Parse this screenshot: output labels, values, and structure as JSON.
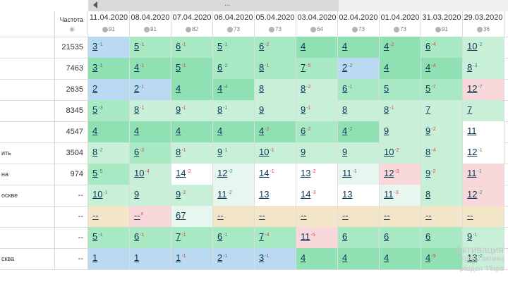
{
  "header": {
    "freq_label": "Частота",
    "scroll_label": "..."
  },
  "dates": [
    {
      "date": "11.04.2020",
      "pct": "91"
    },
    {
      "date": "08.04.2020",
      "pct": "91"
    },
    {
      "date": "07.04.2020",
      "pct": "82"
    },
    {
      "date": "06.04.2020",
      "pct": "73"
    },
    {
      "date": "05.04.2020",
      "pct": "73"
    },
    {
      "date": "03.04.2020",
      "pct": "64"
    },
    {
      "date": "02.04.2020",
      "pct": "73"
    },
    {
      "date": "01.04.2020",
      "pct": "73"
    },
    {
      "date": "31.03.2020",
      "pct": "91"
    },
    {
      "date": "29.03.2020",
      "pct": "36"
    }
  ],
  "rows": [
    {
      "name": "",
      "freq": "21535",
      "cells": [
        [
          "3",
          "-1",
          "b"
        ],
        [
          "5",
          "-1",
          "g2"
        ],
        [
          "6",
          "-1",
          "g2"
        ],
        [
          "5",
          "-1",
          "g2"
        ],
        [
          "6",
          "-2",
          "g2"
        ],
        [
          "4",
          "",
          "g1"
        ],
        [
          "4",
          "",
          "g1"
        ],
        [
          "4",
          "-2",
          "g1"
        ],
        [
          "6",
          "-4",
          "g2"
        ],
        [
          "10",
          "-2",
          "g3"
        ]
      ]
    },
    {
      "name": "",
      "freq": "7463",
      "cells": [
        [
          "3",
          "-1",
          "g1"
        ],
        [
          "4",
          "-1",
          "g1"
        ],
        [
          "5",
          "-1",
          "g1"
        ],
        [
          "6",
          "-2",
          "g2"
        ],
        [
          "8",
          "-1",
          "g2"
        ],
        [
          "7",
          "-5",
          "g2"
        ],
        [
          "2",
          "-2",
          "b"
        ],
        [
          "4",
          "",
          "g1"
        ],
        [
          "4",
          "-4",
          "g1"
        ],
        [
          "8",
          "-3",
          "g3"
        ]
      ]
    },
    {
      "name": "",
      "freq": "2635",
      "cells": [
        [
          "2",
          "",
          "b"
        ],
        [
          "2",
          "-1",
          "b"
        ],
        [
          "4",
          "",
          "g1"
        ],
        [
          "4",
          "-4",
          "g1"
        ],
        [
          "8",
          "",
          "g3"
        ],
        [
          "8",
          "-2",
          "g3"
        ],
        [
          "6",
          "-1",
          "g2"
        ],
        [
          "5",
          "",
          "g2"
        ],
        [
          "5",
          "-7",
          "g2"
        ],
        [
          "12",
          "-7",
          "r"
        ]
      ]
    },
    {
      "name": "",
      "freq": "8345",
      "cells": [
        [
          "5",
          "-3",
          "g2"
        ],
        [
          "8",
          "-1",
          "g3"
        ],
        [
          "9",
          "-1",
          "g3"
        ],
        [
          "8",
          "-1",
          "g3"
        ],
        [
          "9",
          "",
          "g3"
        ],
        [
          "9",
          "-1",
          "g3"
        ],
        [
          "8",
          "",
          "g3"
        ],
        [
          "8",
          "-1",
          "g3"
        ],
        [
          "7",
          "",
          "g3"
        ],
        [
          "7",
          "",
          "g3"
        ]
      ]
    },
    {
      "name": "",
      "freq": "4547",
      "cells": [
        [
          "4",
          "",
          "g1"
        ],
        [
          "4",
          "",
          "g1"
        ],
        [
          "4",
          "",
          "g1"
        ],
        [
          "4",
          "",
          "g1"
        ],
        [
          "4",
          "-2",
          "g1"
        ],
        [
          "6",
          "-2",
          "g2"
        ],
        [
          "4",
          "-2",
          "g1"
        ],
        [
          "9",
          "",
          "g3"
        ],
        [
          "9",
          "-2",
          "g3"
        ],
        [
          "11",
          "",
          "w"
        ]
      ]
    },
    {
      "name": "ить",
      "freq": "3504",
      "cells": [
        [
          "8",
          "-2",
          "g3"
        ],
        [
          "6",
          "-2",
          "g2"
        ],
        [
          "8",
          "-1",
          "g3"
        ],
        [
          "9",
          "-1",
          "g3"
        ],
        [
          "10",
          "-1",
          "g3"
        ],
        [
          "9",
          "",
          "g3"
        ],
        [
          "9",
          "",
          "g3"
        ],
        [
          "10",
          "-2",
          "g3"
        ],
        [
          "8",
          "-4",
          "g3"
        ],
        [
          "12",
          "-1",
          "w"
        ]
      ]
    },
    {
      "name": "на",
      "freq": "974",
      "cells": [
        [
          "5",
          "-5",
          "g2"
        ],
        [
          "10",
          "-4",
          "g3"
        ],
        [
          "14",
          "-2",
          "w"
        ],
        [
          "12",
          "-2",
          "gw"
        ],
        [
          "14",
          "-1",
          "w"
        ],
        [
          "13",
          "-2",
          "w"
        ],
        [
          "11",
          "-1",
          "gw"
        ],
        [
          "12",
          "-3",
          "r"
        ],
        [
          "9",
          "-2",
          "g3"
        ],
        [
          "11",
          "-1",
          "r"
        ]
      ]
    },
    {
      "name": "оскве",
      "freq": "--",
      "cells": [
        [
          "10",
          "-1",
          "g3"
        ],
        [
          "9",
          "",
          "g3"
        ],
        [
          "9",
          "-2",
          "g3"
        ],
        [
          "11",
          "-2",
          "gw"
        ],
        [
          "13",
          "",
          "w"
        ],
        [
          "14",
          "-3",
          "w"
        ],
        [
          "13",
          "",
          "w"
        ],
        [
          "11",
          "-3",
          "gw"
        ],
        [
          "8",
          "",
          "g3"
        ],
        [
          "12",
          "-2",
          "r"
        ]
      ]
    },
    {
      "name": "",
      "freq": "--",
      "cells": [
        [
          "--",
          "",
          "y"
        ],
        [
          "--",
          "x",
          "r"
        ],
        [
          "67",
          "",
          "gw"
        ],
        [
          "--",
          "",
          "y"
        ],
        [
          "--",
          "",
          "y"
        ],
        [
          "--",
          "",
          "y"
        ],
        [
          "--",
          "",
          "y"
        ],
        [
          "--",
          "",
          "y"
        ],
        [
          "--",
          "",
          "y"
        ],
        [
          "--",
          "",
          "y"
        ]
      ]
    },
    {
      "name": "",
      "freq": "--",
      "cells": [
        [
          "5",
          "-1",
          "g2"
        ],
        [
          "6",
          "-1",
          "g2"
        ],
        [
          "7",
          "-1",
          "g2"
        ],
        [
          "6",
          "-1",
          "g2"
        ],
        [
          "7",
          "-4",
          "g2"
        ],
        [
          "11",
          "-5",
          "r"
        ],
        [
          "6",
          "",
          "g2"
        ],
        [
          "6",
          "",
          "g2"
        ],
        [
          "6",
          "",
          "g2"
        ],
        [
          "9",
          "-1",
          "g3"
        ]
      ]
    },
    {
      "name": "сква",
      "freq": "--",
      "cells": [
        [
          "1",
          "",
          "b"
        ],
        [
          "1",
          "",
          "b"
        ],
        [
          "1",
          "-1",
          "b"
        ],
        [
          "2",
          "-1",
          "b"
        ],
        [
          "3",
          "-1",
          "b"
        ],
        [
          "4",
          "",
          "g1"
        ],
        [
          "4",
          "",
          "g1"
        ],
        [
          "4",
          "",
          "g1"
        ],
        [
          "4",
          "-9",
          "g1"
        ],
        [
          "13",
          "-2",
          "g3"
        ]
      ]
    }
  ],
  "watermark": {
    "line1": "Активация",
    "line2": "Чтобы активи",
    "line3": "раздел \"Пара"
  }
}
